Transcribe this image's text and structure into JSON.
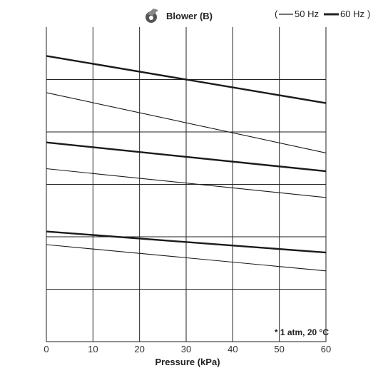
{
  "chart_data": {
    "type": "line",
    "title": "Blower (B)",
    "legend": {
      "open": "(",
      "close": ")",
      "entries": [
        {
          "label": "50 Hz",
          "style": "thin"
        },
        {
          "label": "60 Hz",
          "style": "thick"
        }
      ],
      "placement": "top-right"
    },
    "xlabel": "Pressure (kPa)",
    "ylabel": "",
    "xlim": [
      0,
      60
    ],
    "ylim": [
      0,
      6
    ],
    "x_ticks": [
      0,
      10,
      20,
      30,
      40,
      50,
      60
    ],
    "x_tick_labels": [
      "0",
      "10",
      "20",
      "30",
      "40",
      "50",
      "60"
    ],
    "y_ticks": [
      1,
      2,
      3,
      4,
      5
    ],
    "y_tick_labels": [],
    "grid": true,
    "note": "* 1 atm, 20 °C",
    "series": [
      {
        "style": "thick",
        "x": [
          0,
          60
        ],
        "y": [
          5.45,
          4.55
        ]
      },
      {
        "style": "thin",
        "x": [
          0,
          60
        ],
        "y": [
          4.75,
          3.6
        ]
      },
      {
        "style": "thick",
        "x": [
          0,
          60
        ],
        "y": [
          3.8,
          3.25
        ]
      },
      {
        "style": "thin",
        "x": [
          0,
          60
        ],
        "y": [
          3.3,
          2.75
        ]
      },
      {
        "style": "thick",
        "x": [
          0,
          60
        ],
        "y": [
          2.1,
          1.7
        ]
      },
      {
        "style": "thin",
        "x": [
          0,
          60
        ],
        "y": [
          1.85,
          1.35
        ]
      }
    ]
  }
}
